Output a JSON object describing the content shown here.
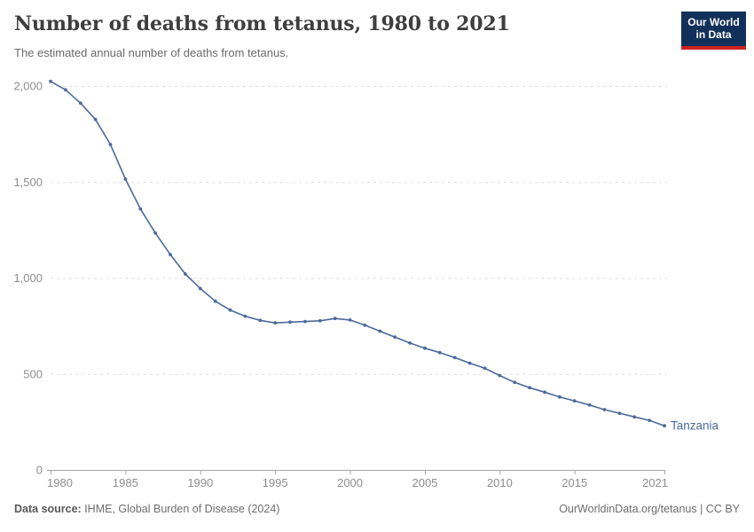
{
  "header": {
    "title": "Number of deaths from tetanus, 1980 to 2021",
    "subtitle": "The estimated annual number of deaths from tetanus.",
    "logo": {
      "line1": "Our World",
      "line2": "in Data",
      "bg_color": "#12315a",
      "accent_color": "#d0231d"
    }
  },
  "chart_data": {
    "type": "line",
    "title": "Number of deaths from tetanus, 1980 to 2021",
    "xlabel": "",
    "ylabel": "",
    "xlim": [
      1980,
      2021
    ],
    "ylim": [
      0,
      2000
    ],
    "grid": "horizontal-dashed",
    "legend_position": "end-of-line-label",
    "xticks": [
      1980,
      1985,
      1990,
      1995,
      2000,
      2005,
      2010,
      2015,
      2021
    ],
    "yticks": [
      {
        "value": 0,
        "label": "0"
      },
      {
        "value": 500,
        "label": "500"
      },
      {
        "value": 1000,
        "label": "1,000"
      },
      {
        "value": 1500,
        "label": "1,500"
      },
      {
        "value": 2000,
        "label": "2,000"
      }
    ],
    "x": [
      1980,
      1981,
      1982,
      1983,
      1984,
      1985,
      1986,
      1987,
      1988,
      1989,
      1990,
      1991,
      1992,
      1993,
      1994,
      1995,
      1996,
      1997,
      1998,
      1999,
      2000,
      2001,
      2002,
      2003,
      2004,
      2005,
      2006,
      2007,
      2008,
      2009,
      2010,
      2011,
      2012,
      2013,
      2014,
      2015,
      2016,
      2017,
      2018,
      2019,
      2020,
      2021
    ],
    "series": [
      {
        "name": "Tanzania",
        "color": "#4C6A9C",
        "values": [
          2024,
          1980,
          1911,
          1826,
          1695,
          1515,
          1360,
          1234,
          1122,
          1021,
          945,
          879,
          833,
          801,
          779,
          766,
          770,
          773,
          777,
          789,
          781,
          754,
          723,
          692,
          661,
          634,
          611,
          585,
          556,
          530,
          492,
          456,
          428,
          405,
          380,
          360,
          338,
          314,
          295,
          276,
          258,
          230
        ]
      }
    ],
    "colors": {
      "gridline": "#dddddd",
      "axis": "#a5a5a5",
      "tick_label": "#8d8d8d"
    }
  },
  "footer": {
    "source_label": "Data source:",
    "source_text": " IHME, Global Burden of Disease (2024)",
    "credit": "OurWorldinData.org/tetanus | CC BY"
  }
}
